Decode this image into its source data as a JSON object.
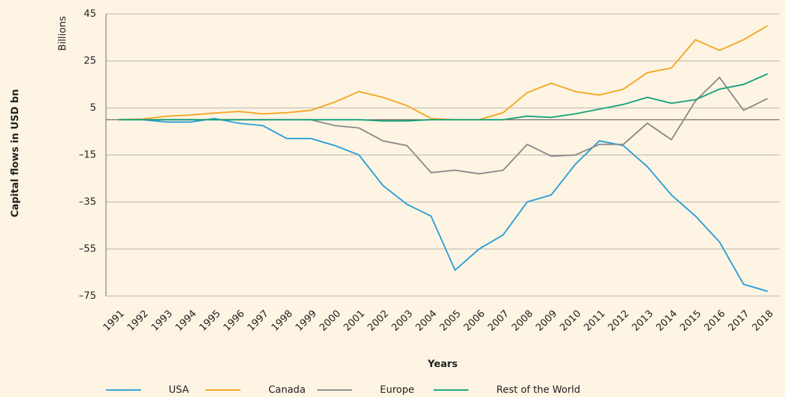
{
  "chart_data": {
    "type": "line",
    "y_label": "Capital flows in USD bn",
    "y_unit": "Billions",
    "x_label": "Years",
    "categories": [
      "1991",
      "1992",
      "1993",
      "1994",
      "1995",
      "1996",
      "1997",
      "1998",
      "1999",
      "2000",
      "2001",
      "2002",
      "2003",
      "2004",
      "2005",
      "2006",
      "2007",
      "2008",
      "2009",
      "2010",
      "2011",
      "2012",
      "2013",
      "2014",
      "2015",
      "2016",
      "2017",
      "2018"
    ],
    "series": [
      {
        "name": "USA",
        "color": "#2b9fd8",
        "values": [
          0,
          0,
          -1,
          -1,
          0.5,
          -1.5,
          -2.5,
          -8,
          -8,
          -11,
          -15,
          -28,
          -36,
          -41,
          -64,
          -55,
          -49,
          -35,
          -32,
          -19,
          -9,
          -11,
          -20,
          -32,
          -41,
          -52,
          -70,
          -73
        ]
      },
      {
        "name": "Canada",
        "color": "#f5a623",
        "values": [
          0,
          0.3,
          1.5,
          2,
          2.8,
          3.5,
          2.5,
          3,
          4,
          7.5,
          12,
          9.5,
          6,
          0.5,
          0,
          0,
          3,
          11.5,
          15.5,
          12,
          10.5,
          13,
          20,
          22,
          34,
          29.5,
          34,
          40
        ]
      },
      {
        "name": "Europe",
        "color": "#8c8c8c",
        "values": [
          0,
          0,
          0,
          0,
          0,
          0,
          0,
          0,
          0,
          -2.5,
          -3.5,
          -9,
          -11,
          -22.5,
          -21.5,
          -23,
          -21.5,
          -10.5,
          -15.5,
          -15,
          -10.5,
          -10.5,
          -1.5,
          -8.5,
          8,
          18,
          4,
          9
        ]
      },
      {
        "name": "Rest of the World",
        "color": "#17a37b",
        "values": [
          0,
          0,
          0,
          0,
          0,
          0,
          0,
          0,
          0,
          0,
          0,
          -0.5,
          -0.5,
          0,
          0,
          0,
          0,
          1.5,
          1,
          2.5,
          4.5,
          6.5,
          9.5,
          7,
          8.5,
          13,
          15,
          19.5
        ]
      }
    ],
    "ylim": [
      -75,
      45
    ],
    "yticks": [
      45,
      25,
      5,
      {
        "value": -15,
        "label": "–15"
      },
      {
        "value": -35,
        "label": "–35"
      },
      {
        "value": -55,
        "label": "–55"
      },
      {
        "value": -75,
        "label": "–75"
      }
    ],
    "grid": true,
    "legend": "bottom"
  }
}
